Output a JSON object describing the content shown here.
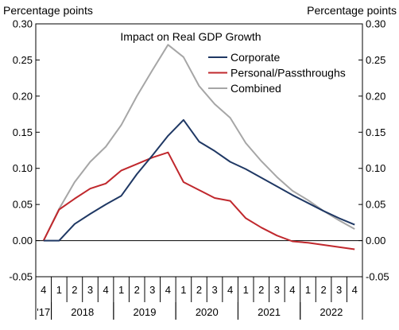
{
  "chart_data": {
    "type": "line",
    "title": "Impact on Real GDP Growth",
    "y_unit_left": "Percentage points",
    "y_unit_right": "Percentage points",
    "ylim": [
      -0.05,
      0.3
    ],
    "yticks": [
      "-0.05",
      "0.00",
      "0.05",
      "0.10",
      "0.15",
      "0.20",
      "0.25",
      "0.30"
    ],
    "ytick_values": [
      -0.05,
      0.0,
      0.05,
      0.1,
      0.15,
      0.2,
      0.25,
      0.3
    ],
    "quarters": [
      "4",
      "1",
      "2",
      "3",
      "4",
      "1",
      "2",
      "3",
      "4",
      "1",
      "2",
      "3",
      "4",
      "1",
      "2",
      "3",
      "4",
      "1",
      "2",
      "3",
      "4"
    ],
    "years": [
      {
        "label": "'17",
        "start": 0,
        "count": 1
      },
      {
        "label": "2018",
        "start": 1,
        "count": 4
      },
      {
        "label": "2019",
        "start": 5,
        "count": 4
      },
      {
        "label": "2020",
        "start": 9,
        "count": 4
      },
      {
        "label": "2021",
        "start": 13,
        "count": 4
      },
      {
        "label": "2022",
        "start": 17,
        "count": 4
      }
    ],
    "grid": false,
    "legend_position": "top-right",
    "series": [
      {
        "name": "Corporate",
        "color": "#1f3864",
        "values": [
          0.0,
          0.0,
          0.023,
          0.037,
          0.05,
          0.062,
          0.092,
          0.118,
          0.145,
          0.167,
          0.137,
          0.124,
          0.109,
          0.099,
          0.087,
          0.075,
          0.063,
          0.052,
          0.041,
          0.031,
          0.022
        ]
      },
      {
        "name": "Personal/Passthroughs",
        "color": "#c0282d",
        "values": [
          0.0,
          0.043,
          0.058,
          0.072,
          0.079,
          0.097,
          0.106,
          0.115,
          0.122,
          0.081,
          0.07,
          0.059,
          0.055,
          0.031,
          0.018,
          0.007,
          -0.001,
          -0.003,
          -0.006,
          -0.009,
          -0.012
        ]
      },
      {
        "name": "Combined",
        "color": "#a6a6a6",
        "values": [
          0.0,
          0.044,
          0.081,
          0.109,
          0.13,
          0.16,
          0.2,
          0.236,
          0.271,
          0.254,
          0.214,
          0.189,
          0.17,
          0.135,
          0.11,
          0.088,
          0.069,
          0.056,
          0.041,
          0.028,
          0.016
        ]
      }
    ]
  }
}
